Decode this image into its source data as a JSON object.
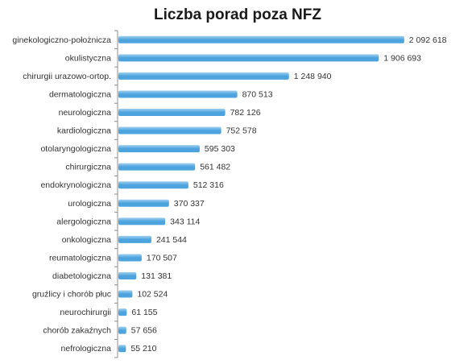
{
  "chart_data": {
    "type": "bar",
    "orientation": "horizontal",
    "title": "Liczba porad poza NFZ",
    "xlabel": "",
    "ylabel": "",
    "grid": false,
    "legend": "none",
    "bar_color": "#4da3dd",
    "bar_color_light": "#9fd0f2",
    "xlim": [
      0,
      2200000
    ],
    "categories": [
      "ginekologiczno-położnicza",
      "okulistyczna",
      "chirurgii urazowo-ortop.",
      "dermatologiczna",
      "neurologiczna",
      "kardiologiczna",
      "otolaryngologiczna",
      "chirurgiczna",
      "endokrynologiczna",
      "urologiczna",
      "alergologiczna",
      "onkologiczna",
      "reumatologiczna",
      "diabetologiczna",
      "gruźlicy i chorób płuc",
      "neurochirurgii",
      "chorób zakaźnych",
      "nefrologiczna"
    ],
    "values": [
      2092618,
      1906693,
      1248940,
      870513,
      782126,
      752578,
      595303,
      561482,
      512316,
      370337,
      343114,
      241544,
      170507,
      131381,
      102524,
      61155,
      57656,
      55210
    ],
    "value_labels": [
      "2 092 618",
      "1 906 693",
      "1 248 940",
      "870 513",
      "782 126",
      "752 578",
      "595 303",
      "561 482",
      "512 316",
      "370 337",
      "343 114",
      "241 544",
      "170 507",
      "131 381",
      "102 524",
      "61 155",
      "57 656",
      "55 210"
    ]
  }
}
